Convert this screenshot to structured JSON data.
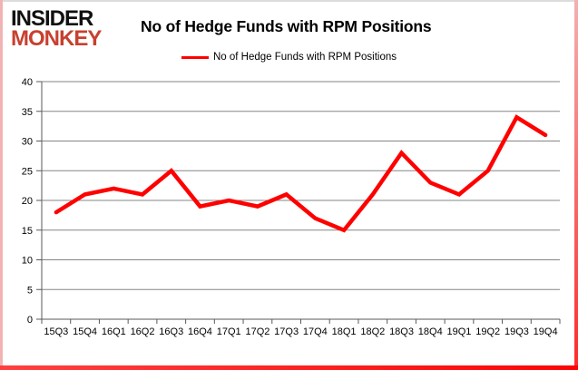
{
  "logo": {
    "line1": "INSIDER",
    "line2": "MONKEY",
    "line1_color": "#111111",
    "line2_color": "#c8402f"
  },
  "header": {
    "title": "No of Hedge Funds with RPM Positions"
  },
  "legend": {
    "label": "No of Hedge Funds with RPM Positions",
    "marker_color": "#ff0000"
  },
  "chart_data": {
    "type": "line",
    "title": "No of Hedge Funds with RPM Positions",
    "categories": [
      "15Q3",
      "15Q4",
      "16Q1",
      "16Q2",
      "16Q3",
      "16Q4",
      "17Q1",
      "17Q2",
      "17Q3",
      "17Q4",
      "18Q1",
      "18Q2",
      "18Q3",
      "18Q4",
      "19Q1",
      "19Q2",
      "19Q3",
      "19Q4"
    ],
    "series": [
      {
        "name": "No of Hedge Funds with RPM Positions",
        "color": "#ff0000",
        "values": [
          18,
          21,
          22,
          21,
          25,
          19,
          20,
          19,
          21,
          17,
          15,
          21,
          28,
          23,
          21,
          25,
          34,
          31
        ]
      }
    ],
    "xlabel": "",
    "ylabel": "",
    "ylim": [
      0,
      40
    ],
    "ytick_step": 5,
    "grid": true,
    "legend_position": "top-center",
    "gridline_color": "#858585",
    "axis_color": "#595959",
    "label_color": "#000000",
    "tick_font_size": 11
  }
}
